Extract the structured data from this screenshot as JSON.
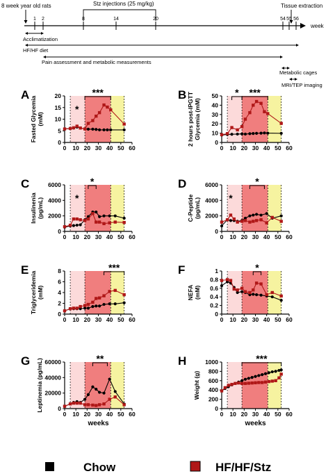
{
  "colors": {
    "chow": "#000000",
    "hfstz": "#b01818",
    "phase_light": "#fcdada",
    "phase_mid": "#f07e7e",
    "phase_end": "#f6f3a0"
  },
  "timeline": {
    "top_labels": [
      "8 week year old rats",
      "Stz injections (25 mg/kg)",
      "Tissue extraction"
    ],
    "unit": "week",
    "ticks": [
      "1",
      "2",
      "8",
      "14",
      "20",
      "54",
      "55",
      "56"
    ],
    "periods": [
      {
        "label": "Acclimatization"
      },
      {
        "label": "HF/HF diet"
      },
      {
        "label": "Pain assessment and metabolic measurements"
      },
      {
        "label": "Metabolic cages"
      },
      {
        "label": "MRI/TEP imaging"
      }
    ]
  },
  "legend": [
    {
      "label": "Chow",
      "color": "#000000"
    },
    {
      "label": "HF/HF/Stz",
      "color": "#b01818"
    }
  ],
  "chart_data": [
    {
      "letter": "A",
      "type": "line",
      "ylabel": "Fasted Glycemia\n(mM)",
      "xlabel": "",
      "xlim": [
        0,
        60
      ],
      "xticks": [
        0,
        10,
        20,
        30,
        40,
        50,
        60
      ],
      "ylim": [
        0,
        20
      ],
      "yticks": [
        0,
        5,
        10,
        15,
        20
      ],
      "shading": [
        [
          5,
          18,
          "light"
        ],
        [
          18,
          41,
          "mid"
        ],
        [
          41,
          53,
          "end"
        ]
      ],
      "x": [
        0,
        5,
        8,
        11,
        14,
        18,
        21,
        25,
        28,
        31,
        35,
        38,
        41,
        53
      ],
      "series": [
        {
          "name": "Chow",
          "values": [
            5.8,
            6.0,
            6.2,
            6.6,
            6.2,
            5.8,
            5.7,
            5.7,
            5.6,
            5.4,
            5.4,
            5.4,
            5.4,
            5.4
          ]
        },
        {
          "name": "HF/HF/Stz",
          "values": [
            5.8,
            6.0,
            6.3,
            7.0,
            6.2,
            5.8,
            8.2,
            9.4,
            11.3,
            12.8,
            16.1,
            15.2,
            14.0,
            7.9
          ]
        }
      ],
      "annotations": [
        {
          "text": "*",
          "x1": 11,
          "x2": 11
        },
        {
          "text": "***",
          "x1": 18,
          "x2": 41
        }
      ]
    },
    {
      "letter": "B",
      "type": "line",
      "ylabel": "2 hours post-IPGTT\nGlycemia (mM)",
      "xlabel": "",
      "xlim": [
        0,
        60
      ],
      "xticks": [
        0,
        10,
        20,
        30,
        40,
        50,
        60
      ],
      "ylim": [
        0,
        50
      ],
      "yticks": [
        0,
        10,
        20,
        30,
        40,
        50
      ],
      "shading": [
        [
          5,
          18,
          "light"
        ],
        [
          18,
          41,
          "mid"
        ],
        [
          41,
          53,
          "end"
        ]
      ],
      "x": [
        0,
        5,
        9,
        14,
        18,
        21,
        25,
        28,
        31,
        35,
        38,
        41,
        53
      ],
      "series": [
        {
          "name": "Chow",
          "values": [
            8.0,
            8.5,
            8.8,
            9.0,
            9.2,
            9.0,
            9.4,
            9.6,
            9.8,
            10.0,
            10.2,
            10.0,
            9.8
          ]
        },
        {
          "name": "HF/HF/Stz",
          "values": [
            8.3,
            9.5,
            16.0,
            13.5,
            17.0,
            25.0,
            32.0,
            40.0,
            44.0,
            42.0,
            33.0,
            31.0,
            20.5
          ]
        }
      ],
      "annotations": [
        {
          "text": "*",
          "x1": 9,
          "x2": 18
        },
        {
          "text": "***",
          "x1": 18,
          "x2": 41
        }
      ]
    },
    {
      "letter": "C",
      "type": "line",
      "ylabel": "Insulinenia\n(pg/mL)",
      "xlabel": "",
      "xlim": [
        0,
        60
      ],
      "xticks": [
        0,
        10,
        20,
        30,
        40,
        50,
        60
      ],
      "ylim": [
        0,
        6000
      ],
      "yticks": [
        0,
        2000,
        4000,
        6000
      ],
      "shading": [
        [
          5,
          18,
          "light"
        ],
        [
          18,
          41,
          "mid"
        ],
        [
          41,
          53,
          "end"
        ]
      ],
      "x": [
        0,
        5,
        8,
        11,
        14,
        18,
        21,
        25,
        28,
        31,
        35,
        40,
        45,
        53
      ],
      "series": [
        {
          "name": "Chow",
          "values": [
            550,
            700,
            750,
            800,
            850,
            1500,
            1900,
            2500,
            2500,
            1900,
            2000,
            2000,
            2000,
            1700
          ]
        },
        {
          "name": "HF/HF/Stz",
          "values": [
            600,
            800,
            1600,
            1600,
            1500,
            1400,
            1600,
            2300,
            1200,
            1200,
            1000,
            1100,
            1200,
            1150
          ]
        }
      ],
      "annotations": [
        {
          "text": "*",
          "x1": 11,
          "x2": 11
        },
        {
          "text": "*",
          "x1": 21,
          "x2": 28
        }
      ]
    },
    {
      "letter": "D",
      "type": "line",
      "ylabel": "C-Peptide\n(pg/mL)",
      "xlabel": "",
      "xlim": [
        0,
        60
      ],
      "xticks": [
        0,
        10,
        20,
        30,
        40,
        50,
        60
      ],
      "ylim": [
        0,
        6000
      ],
      "yticks": [
        0,
        2000,
        4000,
        6000
      ],
      "shading": [
        [
          5,
          18,
          "light"
        ],
        [
          18,
          41,
          "mid"
        ],
        [
          41,
          53,
          "end"
        ]
      ],
      "x": [
        0,
        5,
        8,
        11,
        14,
        18,
        21,
        25,
        28,
        31,
        35,
        40,
        45,
        53
      ],
      "series": [
        {
          "name": "Chow",
          "values": [
            700,
            1500,
            1400,
            1400,
            1300,
            1400,
            1700,
            2000,
            2100,
            2200,
            2100,
            2300,
            1700,
            2000
          ]
        },
        {
          "name": "HF/HF/Stz",
          "values": [
            1200,
            1500,
            2100,
            1600,
            1200,
            1300,
            1400,
            1200,
            1300,
            1400,
            1500,
            1100,
            1800,
            1300
          ]
        }
      ],
      "annotations": [
        {
          "text": "*",
          "x1": 8,
          "x2": 8
        },
        {
          "text": "*",
          "x1": 25,
          "x2": 38
        }
      ]
    },
    {
      "letter": "E",
      "type": "line",
      "ylabel": "Triglyceridemia\n(mM)",
      "xlabel": "",
      "xlim": [
        0,
        60
      ],
      "xticks": [
        0,
        10,
        20,
        30,
        40,
        50,
        60
      ],
      "ylim": [
        0,
        8
      ],
      "yticks": [
        0,
        2,
        4,
        6,
        8
      ],
      "shading": [
        [
          5,
          18,
          "light"
        ],
        [
          18,
          41,
          "mid"
        ],
        [
          41,
          53,
          "end"
        ]
      ],
      "x": [
        0,
        5,
        8,
        11,
        14,
        18,
        21,
        25,
        28,
        31,
        35,
        40,
        45,
        53
      ],
      "series": [
        {
          "name": "Chow",
          "values": [
            0.6,
            1.0,
            1.0,
            1.0,
            1.0,
            1.1,
            1.1,
            1.4,
            1.5,
            1.5,
            1.8,
            1.9,
            1.9,
            2.1
          ]
        },
        {
          "name": "HF/HF/Stz",
          "values": [
            0.6,
            1.0,
            1.1,
            1.1,
            1.4,
            1.6,
            1.8,
            2.2,
            2.9,
            3.0,
            3.4,
            4.2,
            4.4,
            3.6
          ]
        }
      ],
      "annotations": [
        {
          "text": "***",
          "x1": 35,
          "x2": 53
        }
      ]
    },
    {
      "letter": "F",
      "type": "line",
      "ylabel": "NEFA\n(mM)",
      "xlabel": "",
      "xlim": [
        0,
        60
      ],
      "xticks": [
        0,
        10,
        20,
        30,
        40,
        50,
        60
      ],
      "ylim": [
        0,
        1.0
      ],
      "yticks": [
        0,
        0.2,
        0.4,
        0.6,
        0.8,
        1.0
      ],
      "shading": [
        [
          5,
          18,
          "light"
        ],
        [
          18,
          41,
          "mid"
        ],
        [
          41,
          53,
          "end"
        ]
      ],
      "x": [
        0,
        5,
        8,
        11,
        14,
        18,
        21,
        25,
        28,
        31,
        35,
        40,
        45,
        53
      ],
      "series": [
        {
          "name": "Chow",
          "values": [
            0.66,
            0.75,
            0.72,
            0.62,
            0.5,
            0.52,
            0.5,
            0.45,
            0.46,
            0.45,
            0.44,
            0.42,
            0.4,
            0.32
          ]
        },
        {
          "name": "HF/HF/Stz",
          "values": [
            0.78,
            0.8,
            0.78,
            0.58,
            0.56,
            0.6,
            0.52,
            0.5,
            0.56,
            0.72,
            0.7,
            0.45,
            0.5,
            0.42
          ]
        }
      ],
      "annotations": [
        {
          "text": "*",
          "x1": 28,
          "x2": 35
        }
      ]
    },
    {
      "letter": "G",
      "type": "line",
      "ylabel": "Leptinemia  (pg/mL)",
      "xlabel": "weeks",
      "xlim": [
        0,
        60
      ],
      "xticks": [
        0,
        10,
        20,
        30,
        40,
        50,
        60
      ],
      "ylim": [
        0,
        60000
      ],
      "yticks": [
        0,
        20000,
        40000,
        60000
      ],
      "shading": [
        [
          5,
          18,
          "light"
        ],
        [
          18,
          41,
          "mid"
        ],
        [
          41,
          53,
          "end"
        ]
      ],
      "x": [
        0,
        5,
        8,
        11,
        14,
        18,
        21,
        25,
        28,
        31,
        35,
        40,
        45,
        53
      ],
      "series": [
        {
          "name": "Chow",
          "values": [
            3000,
            6000,
            8000,
            9000,
            8000,
            12000,
            18000,
            28000,
            25000,
            21000,
            20000,
            38000,
            22000,
            6000
          ]
        },
        {
          "name": "HF/HF/Stz",
          "values": [
            3000,
            6000,
            7000,
            7000,
            7000,
            5000,
            5000,
            4500,
            4000,
            5000,
            6000,
            12000,
            15000,
            5000
          ]
        }
      ],
      "annotations": [
        {
          "text": "**",
          "x1": 25,
          "x2": 38
        }
      ]
    },
    {
      "letter": "H",
      "type": "line",
      "ylabel": "Weight (g)",
      "xlabel": "weeks",
      "xlim": [
        0,
        60
      ],
      "xticks": [
        0,
        10,
        20,
        30,
        40,
        50,
        60
      ],
      "ylim": [
        0,
        1000
      ],
      "yticks": [
        0,
        200,
        400,
        600,
        800,
        1000
      ],
      "shading": [
        [
          5,
          18,
          "light"
        ],
        [
          18,
          41,
          "mid"
        ],
        [
          41,
          53,
          "end"
        ]
      ],
      "x": [
        0,
        3,
        6,
        9,
        12,
        15,
        18,
        21,
        24,
        27,
        30,
        33,
        36,
        39,
        42,
        45,
        48,
        51,
        53
      ],
      "series": [
        {
          "name": "Chow",
          "values": [
            380,
            430,
            470,
            510,
            540,
            570,
            600,
            630,
            650,
            670,
            690,
            710,
            730,
            750,
            770,
            790,
            800,
            820,
            830
          ]
        },
        {
          "name": "HF/HF/Stz",
          "values": [
            380,
            450,
            500,
            520,
            540,
            550,
            540,
            540,
            545,
            550,
            555,
            560,
            560,
            570,
            580,
            590,
            600,
            660,
            740
          ]
        }
      ],
      "annotations": [
        {
          "text": "***",
          "x1": 18,
          "x2": 53
        }
      ]
    }
  ]
}
